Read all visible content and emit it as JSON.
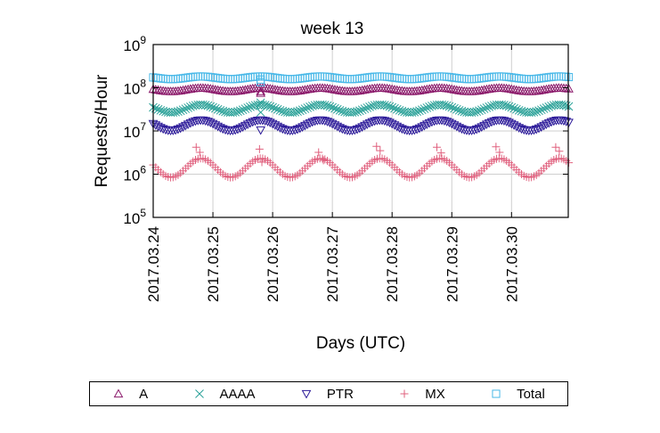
{
  "chart_data": {
    "type": "scatter",
    "title": "week 13",
    "xlabel": "Days (UTC)",
    "ylabel": "Requests/Hour",
    "yscale": "log",
    "ylim": [
      100000,
      1000000000
    ],
    "ytick_exponents": [
      5,
      6,
      7,
      8,
      9
    ],
    "y_tick_base": "10",
    "xlim_days": [
      0,
      6.95
    ],
    "x_ticks": [
      "2017.03.24",
      "2017.03.25",
      "2017.03.26",
      "2017.03.27",
      "2017.03.28",
      "2017.03.29",
      "2017.03.30"
    ],
    "grid": true,
    "legend_position": "bottom",
    "series": [
      {
        "name": "A",
        "marker": "triangle-up",
        "color": "#8b1a6b",
        "base": 90000000,
        "amp": 0.04,
        "spikes": [
          [
            1.8,
            75000000
          ],
          [
            1.8,
            82000000
          ]
        ]
      },
      {
        "name": "AAAA",
        "marker": "x",
        "color": "#2aa198",
        "base": 33000000,
        "amp": 0.09,
        "spikes": [
          [
            1.8,
            27000000
          ],
          [
            1.8,
            45000000
          ]
        ]
      },
      {
        "name": "PTR",
        "marker": "triangle-down",
        "color": "#2c1a99",
        "base": 13500000,
        "amp": 0.12,
        "spikes": [
          [
            1.8,
            10500000
          ]
        ]
      },
      {
        "name": "MX",
        "marker": "plus",
        "color": "#e0607e",
        "base": 1400000,
        "amp": 0.22,
        "spikes": [
          [
            0.72,
            4200000
          ],
          [
            0.78,
            3200000
          ],
          [
            1.78,
            3800000
          ],
          [
            1.82,
            1900000
          ],
          [
            2.77,
            3200000
          ],
          [
            2.85,
            2100000
          ],
          [
            3.74,
            4400000
          ],
          [
            3.8,
            3500000
          ],
          [
            4.75,
            4200000
          ],
          [
            4.82,
            3100000
          ],
          [
            5.74,
            4300000
          ],
          [
            5.8,
            3200000
          ],
          [
            6.74,
            4200000
          ],
          [
            6.8,
            3400000
          ]
        ]
      },
      {
        "name": "Total",
        "marker": "square",
        "color": "#48b8e8",
        "base": 170000000,
        "amp": 0.03,
        "spikes": [
          [
            1.8,
            135000000
          ],
          [
            1.8,
            155000000
          ]
        ]
      }
    ]
  }
}
